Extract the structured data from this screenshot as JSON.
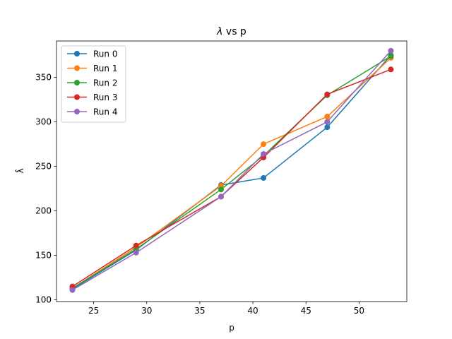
{
  "chart_data": {
    "type": "line",
    "title_italic": "λ",
    "title_rest": " vs p",
    "xlabel": "p",
    "ylabel": "λ̂",
    "xlim": [
      21.5,
      54.5
    ],
    "ylim": [
      98,
      391
    ],
    "xticks": [
      25,
      30,
      35,
      40,
      45,
      50
    ],
    "yticks": [
      100,
      150,
      200,
      250,
      300,
      350
    ],
    "grid": false,
    "legend_position": "top-left",
    "x": [
      23,
      29,
      37,
      41,
      47,
      53
    ],
    "series": [
      {
        "name": "Run 0",
        "color": "#1f77b4",
        "values": [
          112,
          156,
          229,
          237,
          294,
          375
        ]
      },
      {
        "name": "Run 1",
        "color": "#ff7f0e",
        "values": [
          113,
          159,
          228,
          275,
          306,
          372
        ]
      },
      {
        "name": "Run 2",
        "color": "#2ca02c",
        "values": [
          113,
          157,
          224,
          262,
          330,
          374
        ]
      },
      {
        "name": "Run 3",
        "color": "#d62728",
        "values": [
          115,
          161,
          216,
          260,
          331,
          359
        ]
      },
      {
        "name": "Run 4",
        "color": "#9467bd",
        "values": [
          111,
          153,
          216,
          264,
          300,
          380
        ]
      }
    ]
  }
}
